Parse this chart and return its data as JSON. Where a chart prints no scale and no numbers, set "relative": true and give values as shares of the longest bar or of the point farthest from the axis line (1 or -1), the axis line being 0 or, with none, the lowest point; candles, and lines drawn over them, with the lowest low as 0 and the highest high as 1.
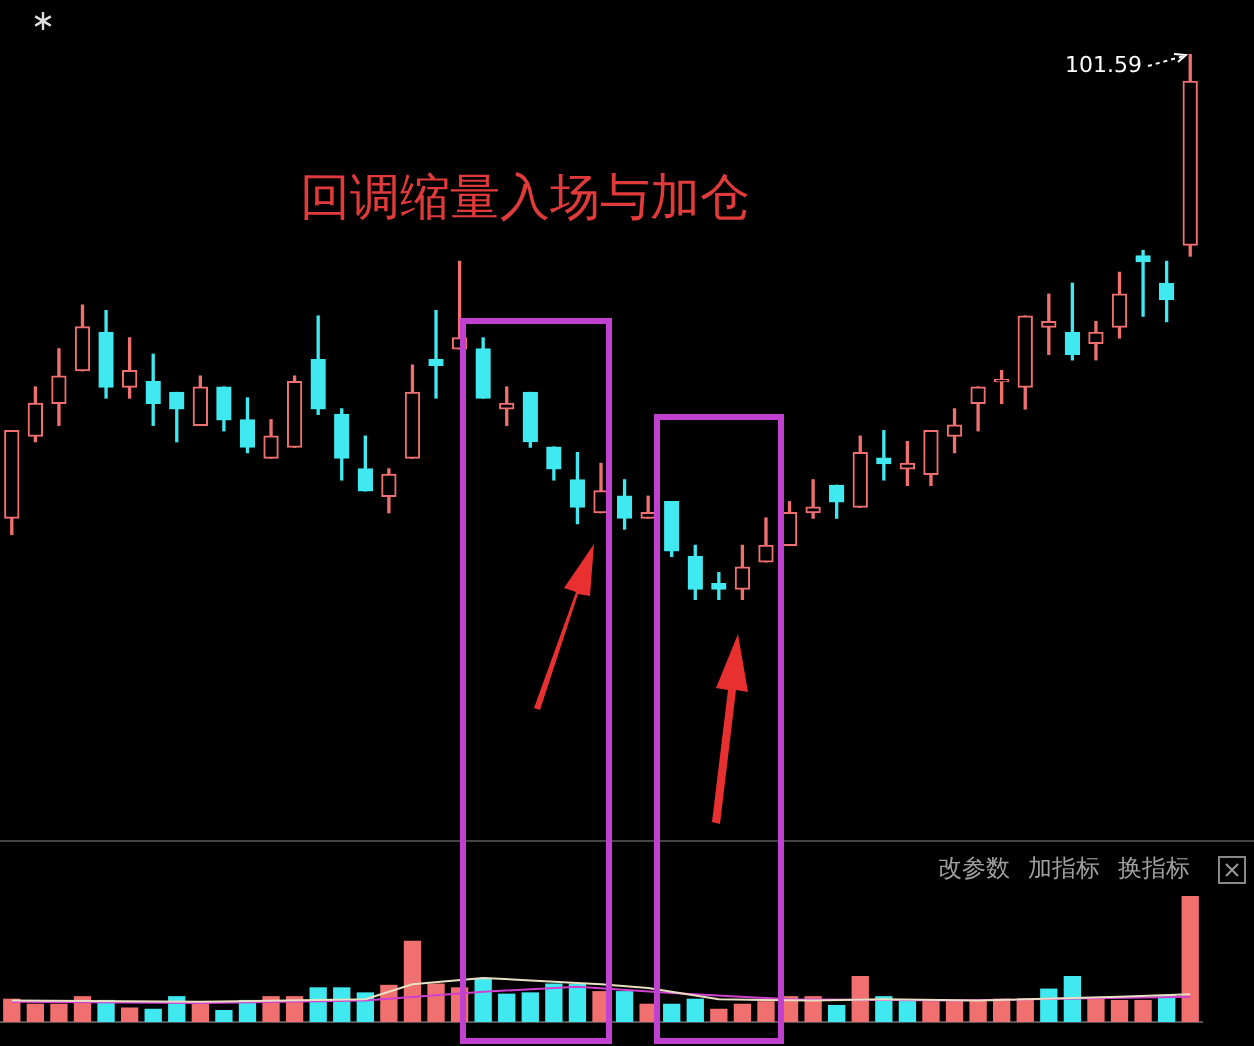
{
  "chart_data": [
    {
      "type": "candlestick",
      "title": "回调缩量入场与加仓",
      "relative": true,
      "tick_labels": false,
      "legend": false,
      "categories": [
        null,
        null,
        null,
        null,
        null,
        null,
        null,
        null,
        null,
        null,
        null,
        null,
        null,
        null,
        null,
        null,
        null,
        null,
        null,
        null,
        null,
        null,
        null,
        null,
        null,
        null,
        null,
        null,
        null,
        null,
        null,
        null,
        null,
        null,
        null,
        null,
        null,
        null,
        null,
        null,
        null,
        null,
        null,
        null,
        null,
        null,
        null,
        null,
        null,
        null,
        null
      ],
      "ohlc": [
        [
          0.15,
          0.31,
          0.12,
          0.31
        ],
        [
          0.3,
          0.39,
          0.29,
          0.36
        ],
        [
          0.36,
          0.46,
          0.32,
          0.41
        ],
        [
          0.42,
          0.54,
          0.42,
          0.5
        ],
        [
          0.49,
          0.53,
          0.37,
          0.39
        ],
        [
          0.39,
          0.48,
          0.37,
          0.42
        ],
        [
          0.4,
          0.45,
          0.32,
          0.36
        ],
        [
          0.38,
          0.38,
          0.29,
          0.35
        ],
        [
          0.32,
          0.41,
          0.32,
          0.39
        ],
        [
          0.39,
          0.39,
          0.31,
          0.33
        ],
        [
          0.33,
          0.37,
          0.27,
          0.28
        ],
        [
          0.26,
          0.33,
          0.26,
          0.3
        ],
        [
          0.28,
          0.41,
          0.28,
          0.4
        ],
        [
          0.44,
          0.52,
          0.34,
          0.35
        ],
        [
          0.34,
          0.35,
          0.22,
          0.26
        ],
        [
          0.24,
          0.3,
          0.2,
          0.2
        ],
        [
          0.19,
          0.24,
          0.16,
          0.23
        ],
        [
          0.26,
          0.43,
          0.26,
          0.38
        ],
        [
          0.44,
          0.53,
          0.37,
          0.43
        ],
        [
          0.46,
          0.62,
          0.46,
          0.48
        ],
        [
          0.46,
          0.48,
          0.37,
          0.37
        ],
        [
          0.35,
          0.39,
          0.32,
          0.36
        ],
        [
          0.38,
          0.38,
          0.28,
          0.29
        ],
        [
          0.28,
          0.28,
          0.22,
          0.24
        ],
        [
          0.22,
          0.27,
          0.14,
          0.17
        ],
        [
          0.16,
          0.25,
          0.16,
          0.2
        ],
        [
          0.19,
          0.22,
          0.13,
          0.15
        ],
        [
          0.15,
          0.19,
          0.15,
          0.16
        ],
        [
          0.18,
          0.18,
          0.08,
          0.09
        ],
        [
          0.08,
          0.1,
          0,
          0.02
        ],
        [
          0.03,
          0.05,
          0,
          0.02
        ],
        [
          0.02,
          0.1,
          0,
          0.06
        ],
        [
          0.07,
          0.15,
          0.07,
          0.1
        ],
        [
          0.1,
          0.18,
          0.1,
          0.16
        ],
        [
          0.16,
          0.22,
          0.15,
          0.17
        ],
        [
          0.21,
          0.21,
          0.15,
          0.18
        ],
        [
          0.17,
          0.3,
          0.17,
          0.27
        ],
        [
          0.26,
          0.31,
          0.22,
          0.25
        ],
        [
          0.24,
          0.29,
          0.21,
          0.25
        ],
        [
          0.23,
          0.31,
          0.21,
          0.31
        ],
        [
          0.3,
          0.35,
          0.27,
          0.32
        ],
        [
          0.36,
          0.39,
          0.31,
          0.39
        ],
        [
          0.4,
          0.42,
          0.36,
          0.4
        ],
        [
          0.39,
          0.52,
          0.35,
          0.52
        ],
        [
          0.5,
          0.56,
          0.45,
          0.51
        ],
        [
          0.49,
          0.58,
          0.44,
          0.45
        ],
        [
          0.47,
          0.51,
          0.44,
          0.49
        ],
        [
          0.5,
          0.6,
          0.48,
          0.56
        ],
        [
          0.63,
          0.64,
          0.52,
          0.62
        ],
        [
          0.58,
          0.62,
          0.51,
          0.55
        ],
        [
          0.65,
          1,
          0.63,
          0.95
        ]
      ],
      "colors": [
        "#f07070",
        "#f07070",
        "#f07070",
        "#f07070",
        "#40e8f0",
        "#f07070",
        "#40e8f0",
        "#40e8f0",
        "#f07070",
        "#40e8f0",
        "#40e8f0",
        "#f07070",
        "#f07070",
        "#40e8f0",
        "#40e8f0",
        "#40e8f0",
        "#f07070",
        "#f07070",
        "#40e8f0",
        "#f07070",
        "#40e8f0",
        "#f07070",
        "#40e8f0",
        "#40e8f0",
        "#40e8f0",
        "#f07070",
        "#40e8f0",
        "#f07070",
        "#40e8f0",
        "#40e8f0",
        "#40e8f0",
        "#f07070",
        "#f07070",
        "#f07070",
        "#f07070",
        "#40e8f0",
        "#f07070",
        "#40e8f0",
        "#f07070",
        "#f07070",
        "#f07070",
        "#f07070",
        "#f07070",
        "#f07070",
        "#f07070",
        "#40e8f0",
        "#f07070",
        "#f07070",
        "#40e8f0",
        "#40e8f0",
        "#f07070"
      ],
      "annotations": [
        "101.59"
      ]
    },
    {
      "type": "bar",
      "relative": true,
      "tick_labels": false,
      "legend": false,
      "categories": [
        null,
        null,
        null,
        null,
        null,
        null,
        null,
        null,
        null,
        null,
        null,
        null,
        null,
        null,
        null,
        null,
        null,
        null,
        null,
        null,
        null,
        null,
        null,
        null,
        null,
        null,
        null,
        null,
        null,
        null,
        null,
        null,
        null,
        null,
        null,
        null,
        null,
        null,
        null,
        null,
        null,
        null,
        null,
        null,
        null,
        null,
        null,
        null,
        null,
        null,
        null
      ],
      "series": [
        {
          "type": "bar",
          "values": [
            0.18,
            0.14,
            0.14,
            0.2,
            0.17,
            0.11,
            0.1,
            0.2,
            0.14,
            0.09,
            0.17,
            0.2,
            0.2,
            0.27,
            0.27,
            0.23,
            0.29,
            0.64,
            0.3,
            0.27,
            0.34,
            0.22,
            0.23,
            0.3,
            0.3,
            0.24,
            0.24,
            0.14,
            0.14,
            0.18,
            0.1,
            0.14,
            0.16,
            0.2,
            0.2,
            0.13,
            0.36,
            0.2,
            0.17,
            0.17,
            0.17,
            0.17,
            0.18,
            0.18,
            0.26,
            0.36,
            0.18,
            0.17,
            0.17,
            0.21,
            1
          ],
          "colors": [
            "#f07070",
            "#f07070",
            "#f07070",
            "#f07070",
            "#40e8f0",
            "#f07070",
            "#40e8f0",
            "#40e8f0",
            "#f07070",
            "#40e8f0",
            "#40e8f0",
            "#f07070",
            "#f07070",
            "#40e8f0",
            "#40e8f0",
            "#40e8f0",
            "#f07070",
            "#f07070",
            "#f07070",
            "#f07070",
            "#40e8f0",
            "#40e8f0",
            "#40e8f0",
            "#40e8f0",
            "#40e8f0",
            "#f07070",
            "#40e8f0",
            "#f07070",
            "#40e8f0",
            "#40e8f0",
            "#f07070",
            "#f07070",
            "#f07070",
            "#f07070",
            "#f07070",
            "#40e8f0",
            "#f07070",
            "#40e8f0",
            "#40e8f0",
            "#f07070",
            "#f07070",
            "#f07070",
            "#f07070",
            "#f07070",
            "#40e8f0",
            "#40e8f0",
            "#f07070",
            "#f07070",
            "#f07070",
            "#40e8f0",
            "#f07070"
          ]
        },
        {
          "type": "line",
          "color": "#e8e0c0",
          "values": [
            0.17,
            null,
            null,
            null,
            null,
            null,
            null,
            null,
            0.16,
            null,
            null,
            null,
            null,
            null,
            null,
            0.18,
            null,
            0.3,
            null,
            null,
            0.35,
            null,
            null,
            0.32,
            null,
            0.3,
            null,
            0.27,
            null,
            null,
            0.18,
            null,
            null,
            null,
            0.17,
            null,
            null,
            0.18,
            null,
            null,
            null,
            0.17,
            null,
            null,
            null,
            null,
            null,
            0.2,
            null,
            null,
            0.22
          ]
        },
        {
          "type": "line",
          "color": "#d040d0",
          "values": [
            0.16,
            null,
            null,
            null,
            null,
            null,
            null,
            null,
            0.15,
            null,
            null,
            null,
            null,
            null,
            null,
            0.17,
            null,
            null,
            null,
            null,
            0.24,
            null,
            null,
            null,
            0.28,
            null,
            null,
            null,
            0.23,
            null,
            null,
            null,
            null,
            0.18,
            null,
            null,
            null,
            null,
            null,
            null,
            0.17,
            null,
            null,
            null,
            null,
            null,
            null,
            null,
            null,
            null,
            0.2
          ]
        }
      ],
      "annotations": [
        "改参数",
        "加指标",
        "换指标"
      ]
    }
  ]
}
